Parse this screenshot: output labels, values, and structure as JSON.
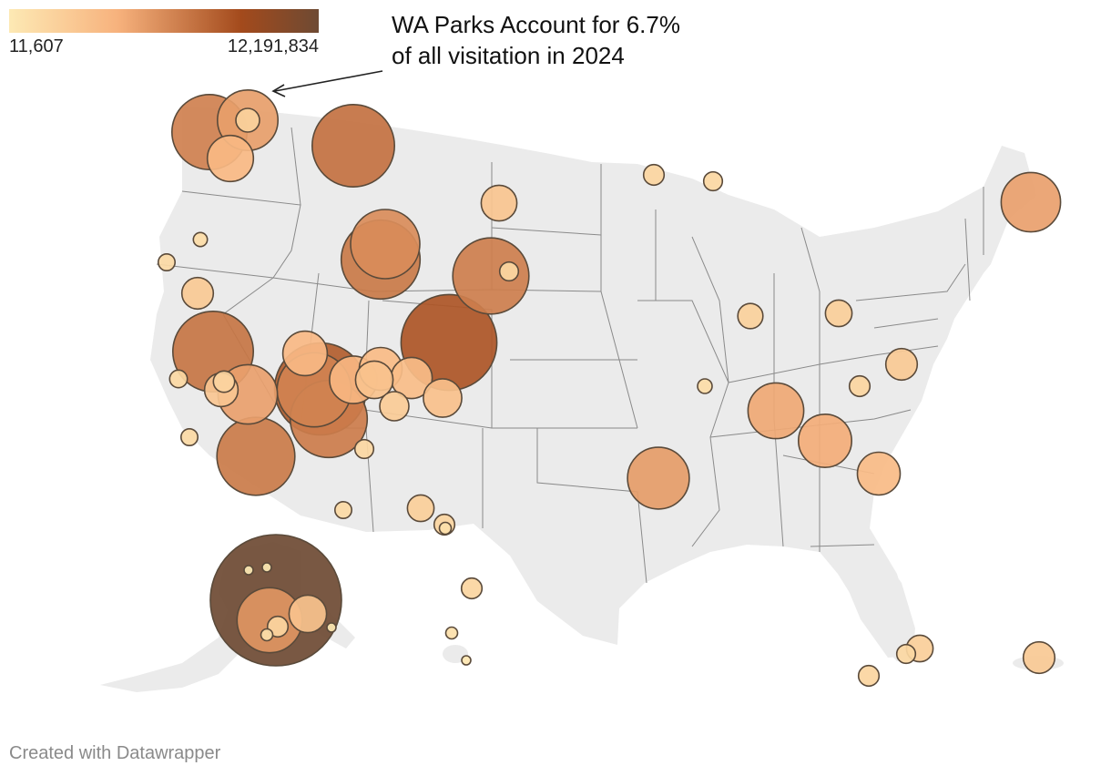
{
  "legend": {
    "min_label": "11,607",
    "max_label": "12,191,834",
    "min_value": 11607,
    "max_value": 12191834,
    "colors": [
      "#fde9b4",
      "#f7b27d",
      "#a34a1c",
      "#6e4a33"
    ]
  },
  "annotation": {
    "line1": "WA Parks Account for 6.7%",
    "line2": "of all visitation in 2024"
  },
  "credit": "Created with Datawrapper",
  "map_colors": {
    "land": "#ebebeb",
    "borders": "#7a7a7a",
    "bubble_stroke": "#5a4a3a"
  },
  "parks": [
    {
      "value": 4000000
    },
    {
      "value": 2600000
    },
    {
      "value": 1500000
    },
    {
      "value": 400000
    },
    {
      "value": 4800000
    },
    {
      "value": 300000
    },
    {
      "value": 250000
    },
    {
      "value": 3400000
    },
    {
      "value": 900000
    },
    {
      "value": 140000
    },
    {
      "value": 200000
    },
    {
      "value": 700000
    },
    {
      "value": 4400000
    },
    {
      "value": 6500000
    },
    {
      "value": 4600000
    },
    {
      "value": 1400000
    },
    {
      "value": 1300000
    },
    {
      "value": 1200000
    },
    {
      "value": 3900000
    },
    {
      "value": 220000
    },
    {
      "value": 320000
    },
    {
      "value": 800000
    },
    {
      "value": 4200000
    },
    {
      "value": 6000000
    },
    {
      "value": 1600000
    },
    {
      "value": 1000000
    },
    {
      "value": 2500000
    },
    {
      "value": 600000
    },
    {
      "value": 1050000
    },
    {
      "value": 200000
    },
    {
      "value": 250000
    },
    {
      "value": 4300000
    },
    {
      "value": 200000
    },
    {
      "value": 500000
    },
    {
      "value": 300000
    },
    {
      "value": 100000
    },
    {
      "value": 250000
    },
    {
      "value": 4100000
    },
    {
      "value": 450000
    },
    {
      "value": 500000
    },
    {
      "value": 700000
    },
    {
      "value": 150000
    },
    {
      "value": 300000
    },
    {
      "value": 2200000
    },
    {
      "value": 2000000
    },
    {
      "value": 1300000
    },
    {
      "value": 2700000
    },
    {
      "value": 2500000
    },
    {
      "value": 12191834
    },
    {
      "value": 1000000
    },
    {
      "value": 300000
    },
    {
      "value": 3000000
    },
    {
      "value": 100000
    },
    {
      "value": 11607
    },
    {
      "value": 11607
    },
    {
      "value": 17000
    },
    {
      "value": 300000
    },
    {
      "value": 100000
    },
    {
      "value": 20000
    },
    {
      "value": 250000
    },
    {
      "value": 500000
    },
    {
      "value": 300000
    },
    {
      "value": 700000
    },
    {
      "value": 600000
    },
    {
      "value": 500000
    },
    {
      "value": 60000
    },
    {
      "value": 300000
    }
  ]
}
